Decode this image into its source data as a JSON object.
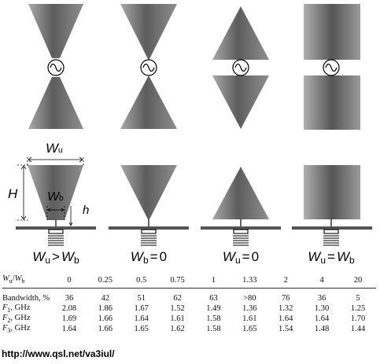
{
  "dimensions": {
    "wu_symbol": "W",
    "wu_sub": "u",
    "wb_symbol": "W",
    "wb_sub": "b",
    "h_upper": "H",
    "h_lower": "h"
  },
  "captions": [
    {
      "left_sym": "W",
      "left_sub": "u",
      "op": ">",
      "right_sym": "W",
      "right_sub": "b"
    },
    {
      "left_sym": "W",
      "left_sub": "b",
      "op": "=",
      "right_sym": "0",
      "right_sub": ""
    },
    {
      "left_sym": "W",
      "left_sub": "u",
      "op": "=",
      "right_sym": "0",
      "right_sub": ""
    },
    {
      "left_sym": "W",
      "left_sub": "u",
      "op": "=",
      "right_sym": "W",
      "right_sub": "b"
    }
  ],
  "table": {
    "header_label_sym1": "W",
    "header_label_sub1": "u",
    "header_label_slash": "/",
    "header_label_sym2": "W",
    "header_label_sub2": "b",
    "ratios": [
      "0",
      "0.25",
      "0.5",
      "0.75",
      "1",
      "1.33",
      "2",
      "4",
      "20"
    ],
    "rows": [
      {
        "sym": "Bandwidth, %",
        "sub": "",
        "unit": "",
        "values": [
          "36",
          "42",
          "51",
          "62",
          "63",
          ">80",
          "76",
          "36",
          "5"
        ]
      },
      {
        "sym": "F",
        "sub": "1",
        "unit": ", GHz",
        "values": [
          "2.08",
          "1.86",
          "1.67",
          "1.52",
          "1.49",
          "1.36",
          "1.32",
          "1.30",
          "1.25"
        ]
      },
      {
        "sym": "F",
        "sub": "2",
        "unit": ", GHz",
        "values": [
          "1.69",
          "1.66",
          "1.64",
          "1.61",
          "1.58",
          "1.61",
          "1.64",
          "1.64",
          "1.70"
        ]
      },
      {
        "sym": "F",
        "sub": "3",
        "unit": ", GHz",
        "values": [
          "1.64",
          "1.66",
          "1.65",
          "1.62",
          "1.58",
          "1.65",
          "1.54",
          "1.48",
          "1.44"
        ]
      }
    ]
  },
  "url": "http://www.qsl.net/va3iul/"
}
